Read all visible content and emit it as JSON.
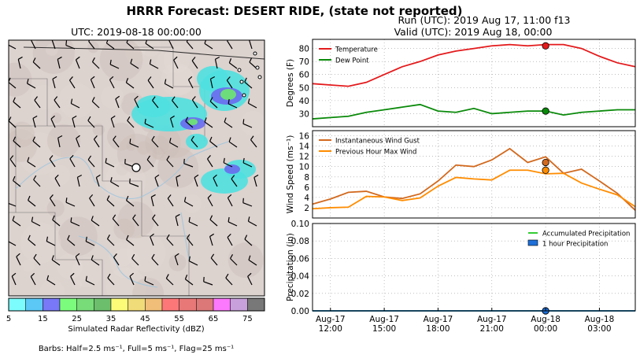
{
  "figure": {
    "title": "HRRR Forecast: DESERT RIDE, (state not reported)",
    "run_label": "Run (UTC): 2019 Aug 17, 11:00 f13",
    "valid_label": "Valid (UTC): 2019 Aug 18, 00:00",
    "barbs_note": "Barbs: Half=2.5 ms⁻¹, Full=5 ms⁻¹, Flag=25 ms⁻¹"
  },
  "map": {
    "title": "UTC: 2019-08-18 00:00:00",
    "colorbar_label": "Simulated Radar Reflectivity (dBZ)",
    "colorbar_ticks": [
      "5",
      "15",
      "25",
      "35",
      "45",
      "55",
      "65",
      "75"
    ],
    "colorbar_colors": [
      "#7cfcfc",
      "#5bc8f5",
      "#7878f8",
      "#7cfc7c",
      "#78dc78",
      "#6cbe6c",
      "#fcfc78",
      "#f0dc78",
      "#f0be78",
      "#fc7878",
      "#e87878",
      "#dc7878",
      "#fc78fc",
      "#c8a0dc",
      "#787878"
    ]
  },
  "chart_data": [
    {
      "type": "line",
      "title": "",
      "xlabel": "",
      "ylabel": "Degrees (F)",
      "ylim": [
        20,
        87
      ],
      "yticks": [
        30,
        40,
        50,
        60,
        70,
        80
      ],
      "grid": true,
      "legend": "top-left",
      "x": [
        0,
        1,
        2,
        3,
        4,
        5,
        6,
        7,
        8,
        9,
        10,
        11,
        12,
        13,
        14,
        15,
        16,
        17,
        18
      ],
      "series": [
        {
          "name": "Temperature",
          "color": "#e41a1c",
          "values": [
            53,
            52,
            51,
            54,
            60,
            66,
            70,
            75,
            78,
            80,
            82,
            83,
            82,
            83,
            83,
            80,
            74,
            69,
            66
          ]
        },
        {
          "name": "Dew Point",
          "color": "#0a8a0a",
          "values": [
            26,
            27,
            28,
            31,
            33,
            35,
            37,
            32,
            31,
            34,
            30,
            31,
            32,
            32,
            29,
            31,
            32,
            33,
            33
          ]
        }
      ],
      "highlight_index": 12
    },
    {
      "type": "line",
      "title": "",
      "xlabel": "",
      "ylabel": "Wind Speed (ms⁻¹)",
      "ylim": [
        0,
        17
      ],
      "yticks": [
        2,
        4,
        6,
        8,
        10,
        12,
        14,
        16
      ],
      "grid": true,
      "legend": "top-left",
      "x": [
        0,
        1,
        2,
        3,
        4,
        5,
        6,
        7,
        8,
        9,
        10,
        11,
        12,
        13,
        14,
        15,
        16,
        17,
        18
      ],
      "series": [
        {
          "name": "Instantaneous Wind Gust",
          "color": "#d2691e",
          "values": [
            2.7,
            3.7,
            5.0,
            5.2,
            4.1,
            3.8,
            4.7,
            7.2,
            10.3,
            10.0,
            11.3,
            13.5,
            10.8,
            11.9,
            8.7,
            9.5,
            7.2,
            4.8,
            1.5
          ]
        },
        {
          "name": "Previous Hour Max Wind",
          "color": "#ff8c00",
          "values": [
            1.8,
            2.0,
            2.1,
            4.2,
            4.1,
            3.4,
            3.9,
            6.2,
            7.9,
            7.6,
            7.4,
            9.3,
            9.3,
            8.6,
            8.7,
            6.8,
            5.6,
            4.5,
            2.2
          ]
        }
      ],
      "highlight_index": 12
    },
    {
      "type": "area",
      "title": "",
      "ylabel": "Precipitation (in)",
      "ylim": [
        0,
        0.1
      ],
      "yticks": [
        "0.00",
        "0.02",
        "0.04",
        "0.06",
        "0.08",
        "0.10"
      ],
      "grid": true,
      "legend": "top-right",
      "x": [
        0,
        1,
        2,
        3,
        4,
        5,
        6,
        7,
        8,
        9,
        10,
        11,
        12,
        13,
        14,
        15,
        16,
        17,
        18
      ],
      "series": [
        {
          "name": "Accumulated Precipitation",
          "color": "#32cd32",
          "values": [
            0,
            0,
            0,
            0,
            0,
            0,
            0,
            0,
            0,
            0,
            0,
            0,
            0,
            0,
            0,
            0,
            0,
            0,
            0
          ]
        },
        {
          "name": "1 hour Precipitation",
          "color": "#1e6fd9",
          "values": [
            0,
            0,
            0,
            0,
            0,
            0,
            0,
            0,
            0,
            0,
            0,
            0,
            0,
            0,
            0,
            0,
            0,
            0,
            0
          ]
        }
      ],
      "highlight_index": 12,
      "xticks": [
        {
          "pos": 1,
          "line1": "Aug-17",
          "line2": "12:00"
        },
        {
          "pos": 4,
          "line1": "Aug-17",
          "line2": "15:00"
        },
        {
          "pos": 7,
          "line1": "Aug-17",
          "line2": "18:00"
        },
        {
          "pos": 10,
          "line1": "Aug-17",
          "line2": "21:00"
        },
        {
          "pos": 13,
          "line1": "Aug-18",
          "line2": "00:00"
        },
        {
          "pos": 16,
          "line1": "Aug-18",
          "line2": "03:00"
        }
      ]
    }
  ]
}
